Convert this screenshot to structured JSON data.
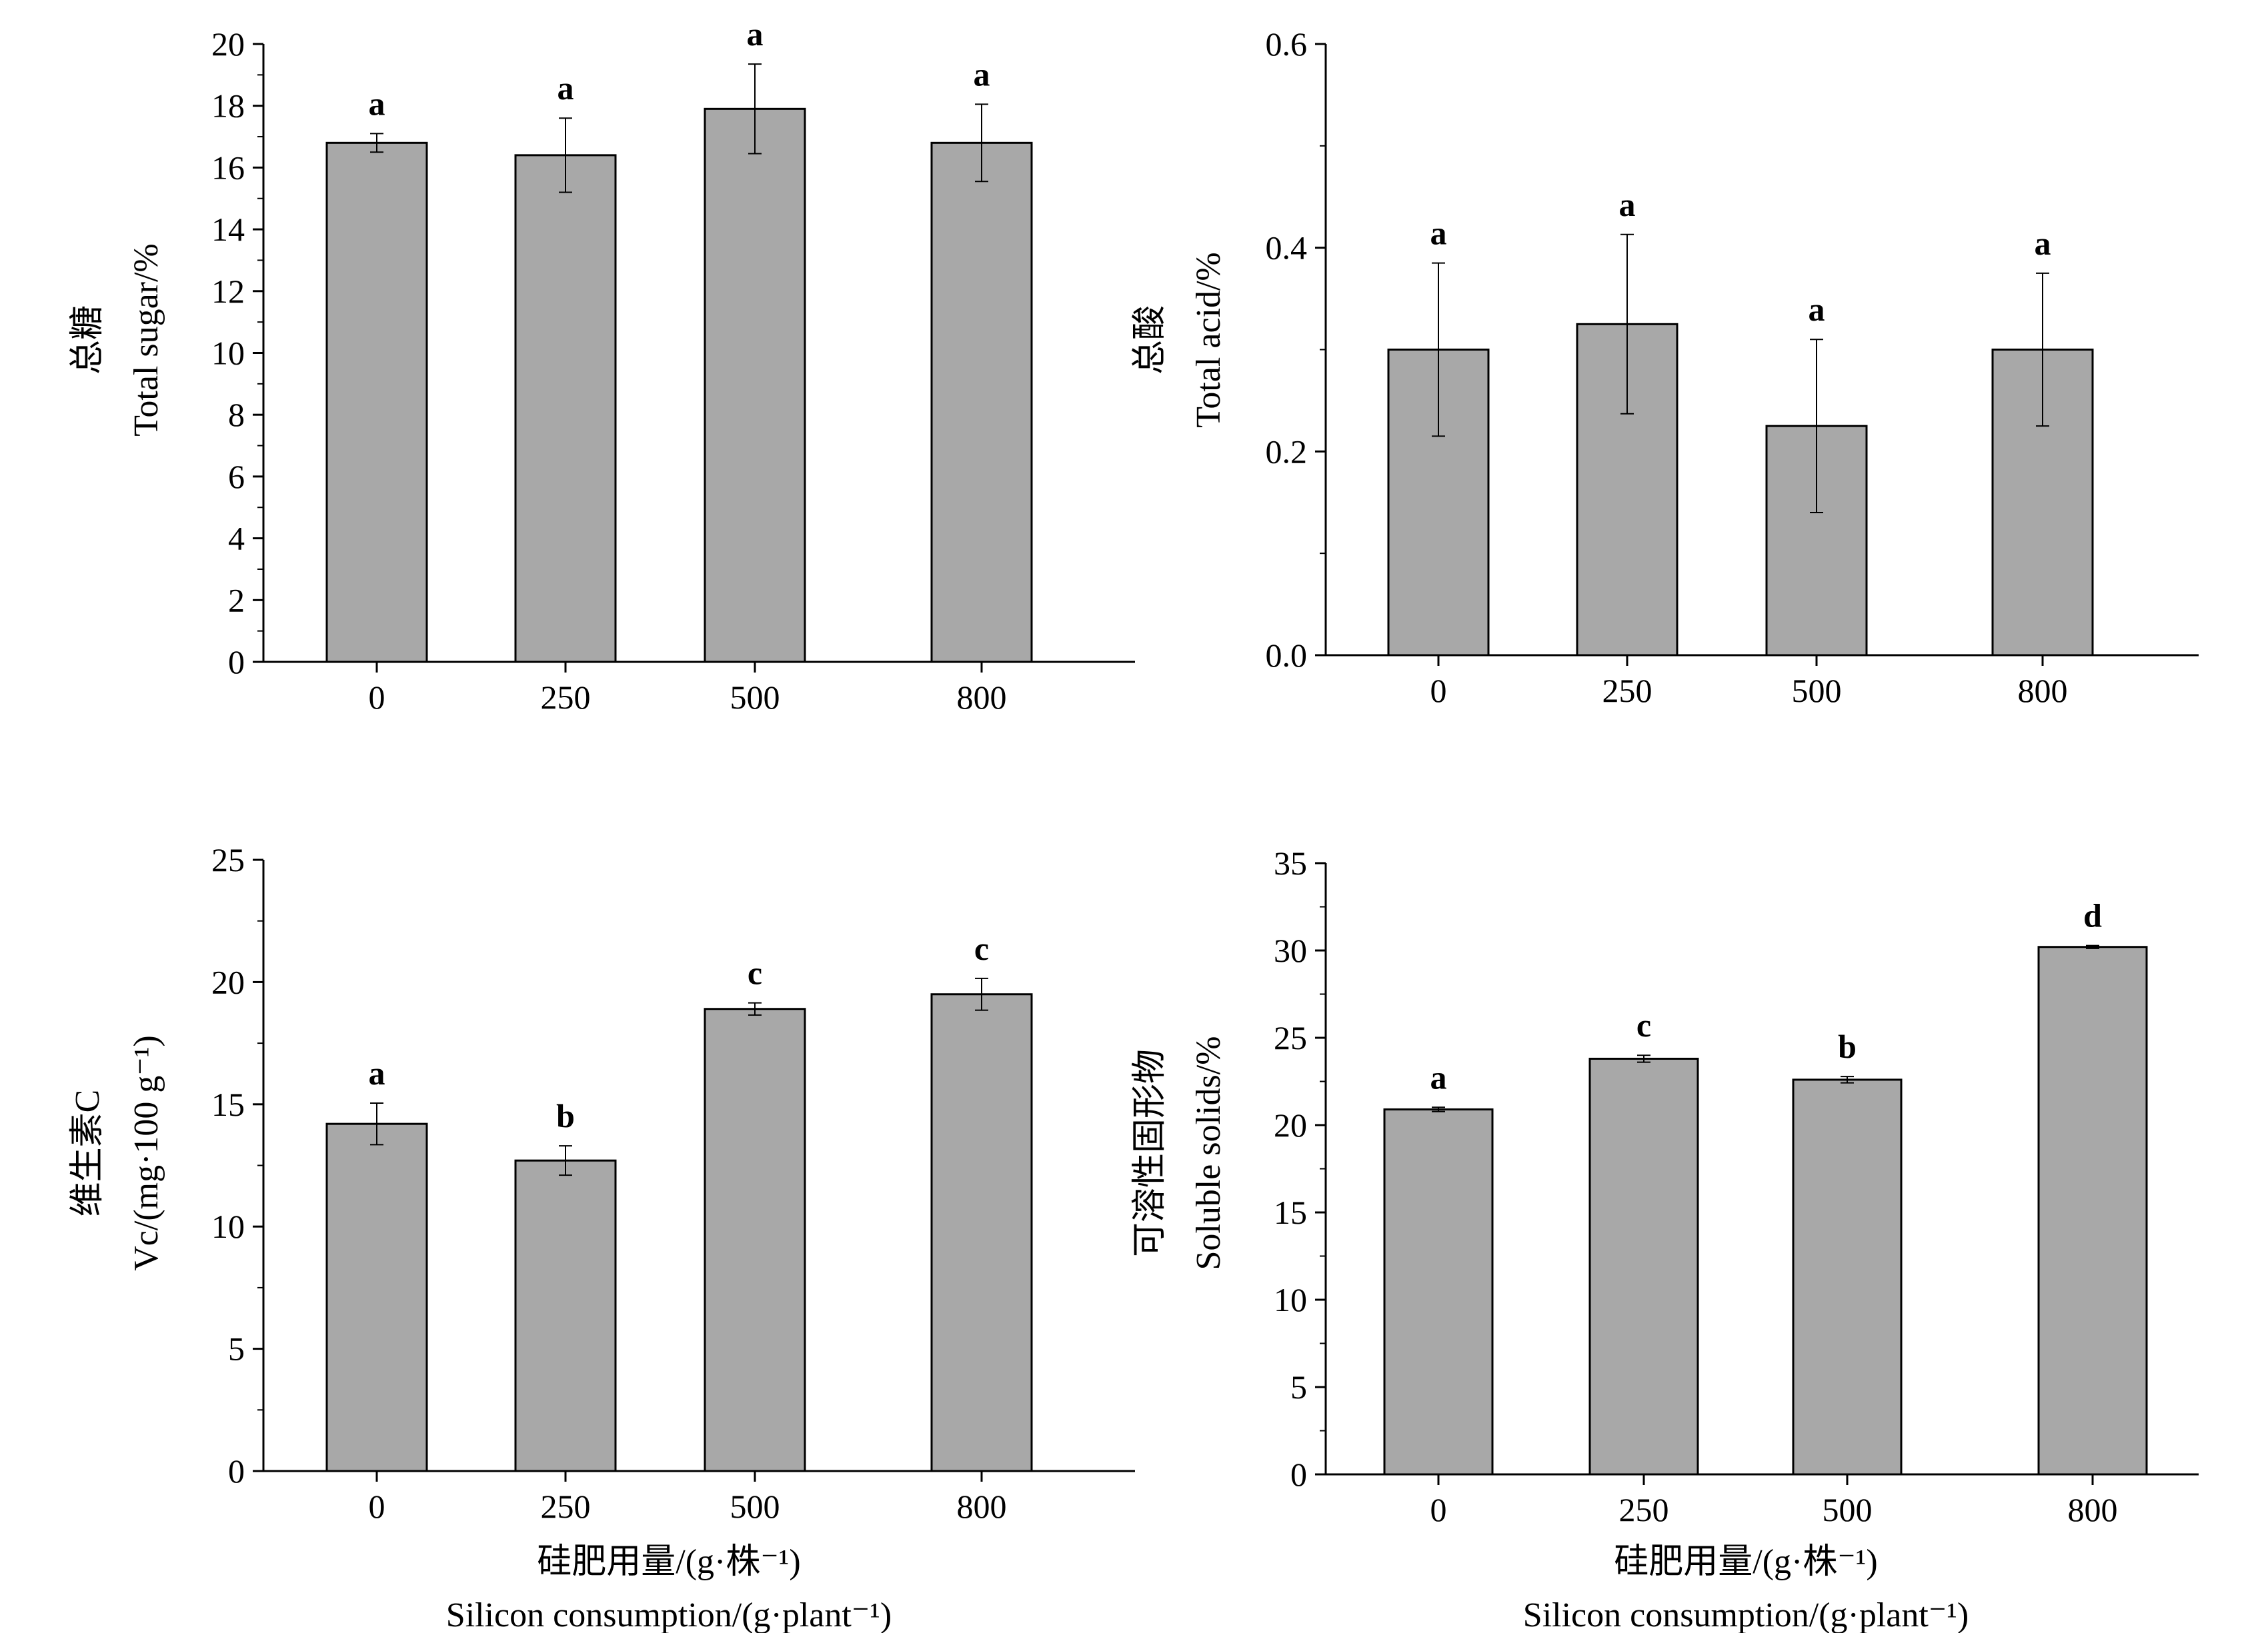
{
  "colors": {
    "bar_fill": "#a8a8a8",
    "bar_stroke": "#000000",
    "axis": "#000000"
  },
  "x_axis_titles": {
    "zh": "硅肥用量/(g·株⁻¹)",
    "en": "Silicon consumption/(g·plant⁻¹)"
  },
  "chart_data": [
    {
      "type": "bar",
      "categories": [
        "0",
        "250",
        "500",
        "800"
      ],
      "ylabel_zh": "总糖",
      "ylabel": "Total sugar/%",
      "ylim": [
        0,
        20
      ],
      "yticks": [
        "0",
        "2",
        "4",
        "6",
        "8",
        "10",
        "12",
        "14",
        "16",
        "18",
        "20"
      ],
      "series": [
        {
          "values": [
            16.8,
            16.4,
            17.9,
            16.8
          ],
          "errors": [
            0.3,
            1.2,
            1.45,
            1.25
          ],
          "significance": [
            "a",
            "a",
            "a",
            "a"
          ]
        }
      ],
      "grid": false
    },
    {
      "type": "bar",
      "categories": [
        "0",
        "250",
        "500",
        "800"
      ],
      "ylabel_zh": "总酸",
      "ylabel": "Total acid/%",
      "ylim": [
        0,
        0.6
      ],
      "yticks": [
        "0.0",
        "0.2",
        "0.4",
        "0.6"
      ],
      "series": [
        {
          "values": [
            0.3,
            0.325,
            0.225,
            0.3
          ],
          "errors": [
            0.085,
            0.088,
            0.085,
            0.075
          ],
          "significance": [
            "a",
            "a",
            "a",
            "a"
          ]
        }
      ],
      "grid": false
    },
    {
      "type": "bar",
      "categories": [
        "0",
        "250",
        "500",
        "800"
      ],
      "ylabel_zh": "维生素C",
      "ylabel": "Vc/(mg·100 g⁻¹)",
      "ylim": [
        0,
        25
      ],
      "yticks": [
        "0",
        "5",
        "10",
        "15",
        "20",
        "25"
      ],
      "series": [
        {
          "values": [
            14.2,
            12.7,
            18.9,
            19.5
          ],
          "errors": [
            0.85,
            0.6,
            0.25,
            0.65
          ],
          "significance": [
            "a",
            "b",
            "c",
            "c"
          ]
        }
      ],
      "grid": false
    },
    {
      "type": "bar",
      "categories": [
        "0",
        "250",
        "500",
        "800"
      ],
      "ylabel_zh": "可溶性固形物",
      "ylabel": "Soluble solids/%",
      "ylim": [
        0,
        35
      ],
      "yticks": [
        "0",
        "5",
        "10",
        "15",
        "20",
        "25",
        "30",
        "35"
      ],
      "series": [
        {
          "values": [
            20.9,
            23.8,
            22.6,
            30.2
          ],
          "errors": [
            0.12,
            0.2,
            0.18,
            0.08
          ],
          "significance": [
            "a",
            "c",
            "b",
            "d"
          ]
        }
      ],
      "grid": false
    }
  ]
}
